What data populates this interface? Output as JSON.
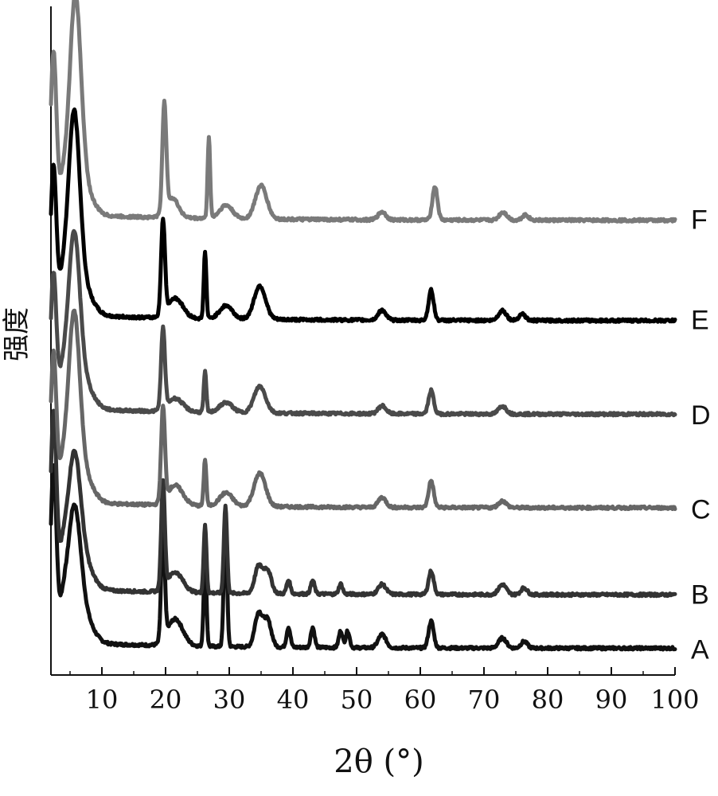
{
  "chart_data": {
    "type": "line",
    "xlabel": "2θ (°)",
    "ylabel": "强度",
    "xlim": [
      2,
      100
    ],
    "xticks": [
      "10",
      "20",
      "30",
      "40",
      "50",
      "60",
      "70",
      "80",
      "90",
      "100"
    ],
    "grid": false,
    "legend": "series labels at right end of each curve",
    "y_units": "arbitrary (offset, no y ticks)",
    "series": [
      {
        "name": "A",
        "color": "#111111",
        "baseline": 0.04,
        "peaks": [
          [
            2.4,
            0.26,
            0.45
          ],
          [
            3.8,
            0.04,
            0.6
          ],
          [
            5.6,
            0.18,
            1.0
          ],
          [
            7.0,
            0.04,
            1.5
          ],
          [
            19.6,
            0.17,
            0.28
          ],
          [
            21.5,
            0.04,
            1.2
          ],
          [
            26.2,
            0.13,
            0.22
          ],
          [
            29.4,
            0.19,
            0.25
          ],
          [
            34.6,
            0.05,
            0.6
          ],
          [
            36.0,
            0.04,
            0.6
          ],
          [
            39.3,
            0.03,
            0.3
          ],
          [
            43.1,
            0.03,
            0.3
          ],
          [
            47.5,
            0.025,
            0.3
          ],
          [
            48.6,
            0.025,
            0.3
          ],
          [
            54.0,
            0.02,
            0.6
          ],
          [
            61.7,
            0.04,
            0.4
          ],
          [
            72.9,
            0.015,
            0.6
          ],
          [
            76.3,
            0.01,
            0.5
          ]
        ]
      },
      {
        "name": "B",
        "color": "#333333",
        "baseline": 0.12,
        "peaks": [
          [
            2.4,
            0.26,
            0.45
          ],
          [
            3.8,
            0.04,
            0.6
          ],
          [
            5.6,
            0.18,
            1.0
          ],
          [
            7.0,
            0.04,
            1.5
          ],
          [
            19.6,
            0.16,
            0.28
          ],
          [
            21.5,
            0.03,
            1.2
          ],
          [
            26.2,
            0.1,
            0.22
          ],
          [
            29.4,
            0.13,
            0.25
          ],
          [
            34.6,
            0.04,
            0.6
          ],
          [
            36.0,
            0.035,
            0.6
          ],
          [
            39.3,
            0.02,
            0.3
          ],
          [
            43.1,
            0.02,
            0.3
          ],
          [
            47.5,
            0.015,
            0.3
          ],
          [
            54.0,
            0.015,
            0.6
          ],
          [
            61.7,
            0.035,
            0.4
          ],
          [
            72.9,
            0.015,
            0.6
          ],
          [
            76.3,
            0.01,
            0.5
          ]
        ]
      },
      {
        "name": "C",
        "color": "#666666",
        "baseline": 0.25,
        "peaks": [
          [
            2.4,
            0.22,
            0.45
          ],
          [
            3.8,
            0.04,
            0.6
          ],
          [
            5.6,
            0.26,
            0.9
          ],
          [
            7.0,
            0.04,
            1.5
          ],
          [
            19.6,
            0.14,
            0.3
          ],
          [
            21.5,
            0.03,
            1.2
          ],
          [
            26.2,
            0.07,
            0.2
          ],
          [
            29.5,
            0.02,
            1.0
          ],
          [
            34.8,
            0.05,
            0.9
          ],
          [
            54.0,
            0.015,
            0.6
          ],
          [
            61.7,
            0.04,
            0.4
          ],
          [
            72.9,
            0.01,
            0.6
          ]
        ]
      },
      {
        "name": "D",
        "color": "#4a4a4a",
        "baseline": 0.39,
        "peaks": [
          [
            2.4,
            0.2,
            0.45
          ],
          [
            3.8,
            0.04,
            0.6
          ],
          [
            5.6,
            0.24,
            0.9
          ],
          [
            7.0,
            0.04,
            1.5
          ],
          [
            19.6,
            0.12,
            0.3
          ],
          [
            21.5,
            0.02,
            1.2
          ],
          [
            26.2,
            0.06,
            0.2
          ],
          [
            29.5,
            0.015,
            1.0
          ],
          [
            34.8,
            0.04,
            0.9
          ],
          [
            54.0,
            0.012,
            0.6
          ],
          [
            61.7,
            0.035,
            0.4
          ],
          [
            72.9,
            0.012,
            0.6
          ]
        ]
      },
      {
        "name": "E",
        "color": "#000000",
        "baseline": 0.53,
        "peaks": [
          [
            2.4,
            0.22,
            0.45
          ],
          [
            3.8,
            0.04,
            0.6
          ],
          [
            5.6,
            0.28,
            0.9
          ],
          [
            7.0,
            0.04,
            1.5
          ],
          [
            19.6,
            0.14,
            0.3
          ],
          [
            21.5,
            0.03,
            1.2
          ],
          [
            26.2,
            0.1,
            0.2
          ],
          [
            29.5,
            0.02,
            1.0
          ],
          [
            34.8,
            0.05,
            0.9
          ],
          [
            54.0,
            0.015,
            0.6
          ],
          [
            61.7,
            0.045,
            0.4
          ],
          [
            72.9,
            0.015,
            0.6
          ],
          [
            76.0,
            0.01,
            0.5
          ]
        ]
      },
      {
        "name": "F",
        "color": "#7a7a7a",
        "baseline": 0.68,
        "peaks": [
          [
            2.4,
            0.24,
            0.45
          ],
          [
            3.8,
            0.04,
            0.6
          ],
          [
            5.8,
            0.3,
            0.9
          ],
          [
            7.0,
            0.04,
            1.5
          ],
          [
            19.8,
            0.16,
            0.3
          ],
          [
            21.0,
            0.03,
            1.0
          ],
          [
            26.8,
            0.12,
            0.2
          ],
          [
            29.5,
            0.02,
            1.0
          ],
          [
            35.0,
            0.05,
            0.9
          ],
          [
            54.0,
            0.012,
            0.6
          ],
          [
            62.3,
            0.05,
            0.4
          ],
          [
            73.0,
            0.012,
            0.6
          ],
          [
            76.5,
            0.008,
            0.5
          ]
        ]
      }
    ]
  }
}
